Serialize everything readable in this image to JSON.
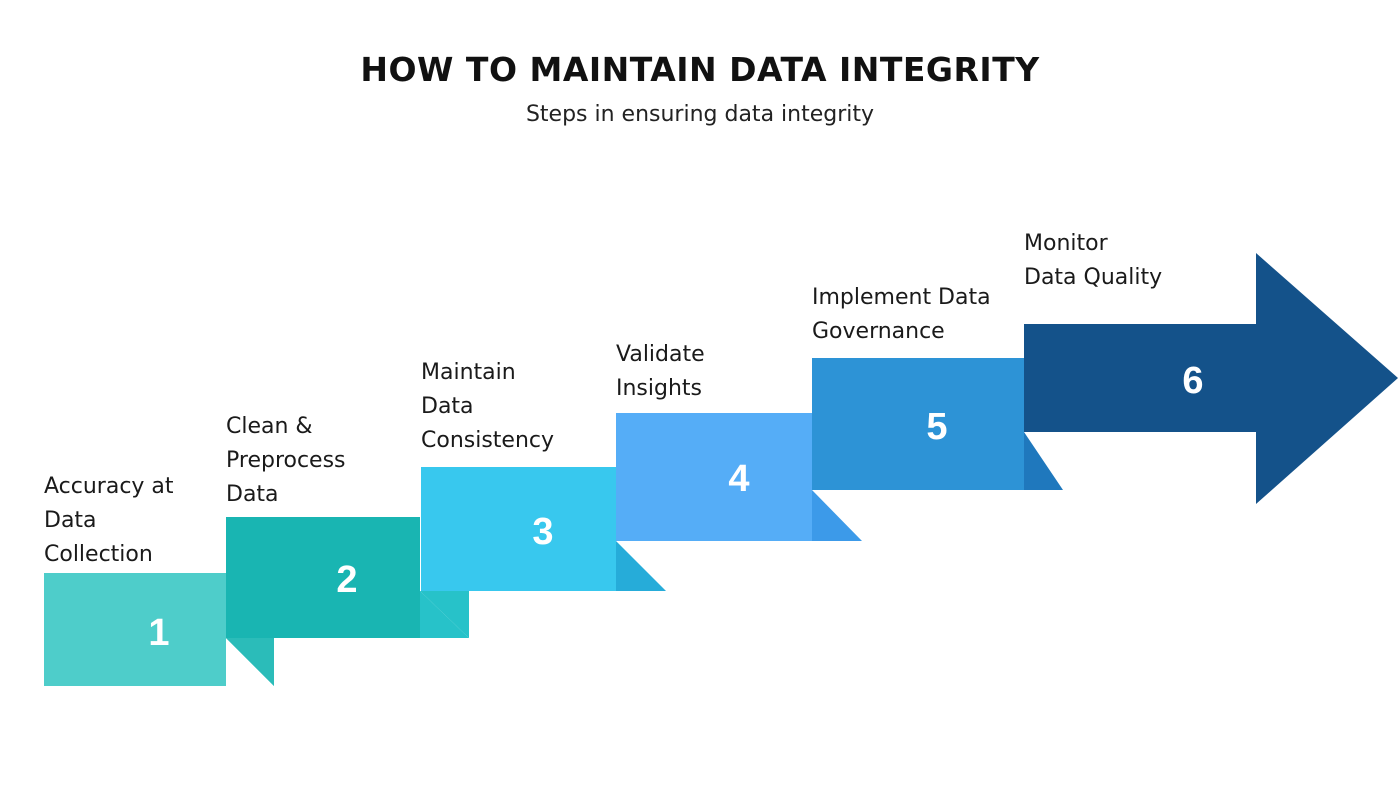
{
  "header": {
    "title": "HOW TO MAINTAIN DATA INTEGRITY",
    "subtitle": "Steps in ensuring data integrity"
  },
  "steps": [
    {
      "number": "1",
      "lines": [
        "Accuracy at",
        "Data",
        "Collection"
      ],
      "color": "#4ecdca",
      "fold_color": "#2bbcb9"
    },
    {
      "number": "2",
      "lines": [
        "Clean &",
        "Preprocess",
        "Data"
      ],
      "color": "#19b5b2",
      "fold_color": "#27c2c9"
    },
    {
      "number": "3",
      "lines": [
        "Maintain",
        "Data",
        "Consistency"
      ],
      "color": "#38c8ee",
      "fold_color": "#26acd9"
    },
    {
      "number": "4",
      "lines": [
        "Validate",
        "Insights"
      ],
      "color": "#55adf7",
      "fold_color": "#3c9ae9"
    },
    {
      "number": "5",
      "lines": [
        "Implement Data",
        "Governance"
      ],
      "color": "#2d93d6",
      "fold_color": "#1f78bd"
    },
    {
      "number": "6",
      "lines": [
        "Monitor",
        "Data Quality"
      ],
      "color": "#14528a",
      "fold_color": "#0f4577"
    }
  ]
}
